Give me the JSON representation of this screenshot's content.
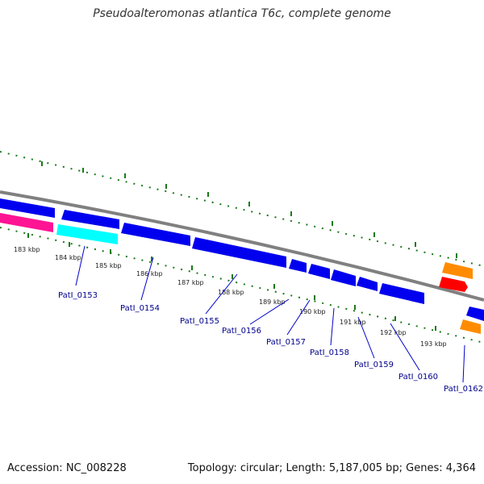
{
  "title": "Pseudoalteromonas atlantica T6c, complete genome",
  "footer": {
    "accession": "Accession: NC_008228",
    "summary": "Topology: circular; Length: 5,187,005 bp; Genes: 4,364"
  },
  "colors": {
    "backbone": "#808080",
    "tick": "#1a7a1a",
    "cds_forward": "#0000ee",
    "cds_other": "#1a1aff",
    "magenta": "#ff1493",
    "cyan": "#00ffff",
    "orange": "#ff8c00",
    "red": "#ff0000",
    "label_line": "#0000cd",
    "locus_text": "#00008b"
  },
  "kbp_labels": [
    "183 kbp",
    "184 kbp",
    "185 kbp",
    "186 kbp",
    "187 kbp",
    "188 kbp",
    "189 kbp",
    "190 kbp",
    "191 kbp",
    "192 kbp",
    "193 kbp"
  ],
  "locus_tags": [
    "PatI_0153",
    "PatI_0154",
    "PatI_0155",
    "PatI_0156",
    "PatI_0157",
    "PatI_0158",
    "PatI_0159",
    "PatI_0160",
    "PatI_0162"
  ]
}
